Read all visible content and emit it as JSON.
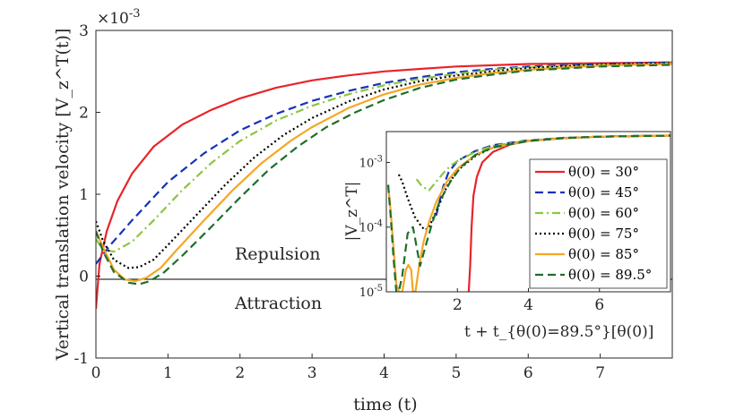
{
  "chart_data": [
    {
      "type": "line",
      "panel": "main",
      "title": "",
      "exponent_label": "×10",
      "exponent_power": "-3",
      "xlabel": "time (t)",
      "ylabel": "Vertical translation velocity [V_z^T(t)]",
      "xlim": [
        0,
        8
      ],
      "ylim": [
        -1,
        3
      ],
      "xticks": [
        0,
        1,
        2,
        3,
        4,
        5,
        6,
        7
      ],
      "yticks": [
        -1,
        0,
        1,
        2,
        3
      ],
      "annotations": [
        "Repulsion",
        "Attraction"
      ],
      "series": [
        {
          "name": "θ(0) = 30°",
          "color": "#e8242a",
          "dash": "solid",
          "x": [
            0,
            0.05,
            0.15,
            0.3,
            0.5,
            0.8,
            1.2,
            1.6,
            2.0,
            2.5,
            3.0,
            3.5,
            4.0,
            4.5,
            5.0,
            6.0,
            7.0,
            8.0
          ],
          "y": [
            -0.4,
            0.15,
            0.55,
            0.92,
            1.25,
            1.58,
            1.85,
            2.03,
            2.17,
            2.3,
            2.39,
            2.45,
            2.5,
            2.53,
            2.56,
            2.59,
            2.6,
            2.61
          ]
        },
        {
          "name": "θ(0) = 45°",
          "color": "#1632b8",
          "dash": "dashed",
          "x": [
            0,
            0.2,
            0.5,
            1.0,
            1.5,
            2.0,
            2.5,
            3.0,
            3.5,
            4.0,
            4.5,
            5.0,
            5.5,
            6.0,
            7.0,
            8.0
          ],
          "y": [
            0.15,
            0.38,
            0.68,
            1.15,
            1.5,
            1.78,
            1.98,
            2.14,
            2.26,
            2.36,
            2.43,
            2.49,
            2.53,
            2.56,
            2.59,
            2.61
          ]
        },
        {
          "name": "θ(0) = 60°",
          "color": "#8cc63f",
          "dash": "dashdot",
          "x": [
            0,
            0.1,
            0.25,
            0.5,
            0.8,
            1.2,
            1.6,
            2.0,
            2.5,
            3.0,
            3.5,
            4.0,
            4.5,
            5.0,
            5.5,
            6.0,
            7.0,
            8.0
          ],
          "y": [
            0.45,
            0.32,
            0.3,
            0.42,
            0.68,
            1.05,
            1.38,
            1.65,
            1.9,
            2.08,
            2.22,
            2.33,
            2.41,
            2.47,
            2.52,
            2.55,
            2.58,
            2.6
          ]
        },
        {
          "name": "θ(0) = 75°",
          "color": "#000000",
          "dash": "dotted",
          "x": [
            0,
            0.1,
            0.25,
            0.45,
            0.6,
            0.8,
            1.0,
            1.4,
            1.8,
            2.2,
            2.6,
            3.0,
            3.5,
            4.0,
            4.5,
            5.0,
            5.5,
            6.0,
            7.0,
            8.0
          ],
          "y": [
            0.67,
            0.43,
            0.2,
            0.1,
            0.11,
            0.2,
            0.38,
            0.75,
            1.12,
            1.45,
            1.72,
            1.93,
            2.13,
            2.28,
            2.38,
            2.45,
            2.5,
            2.54,
            2.58,
            2.6
          ]
        },
        {
          "name": "θ(0) = 85°",
          "color": "#f5a623",
          "dash": "solid",
          "x": [
            0,
            0.1,
            0.25,
            0.4,
            0.55,
            0.7,
            0.9,
            1.1,
            1.5,
            1.9,
            2.3,
            2.7,
            3.0,
            3.5,
            4.0,
            4.5,
            5.0,
            5.5,
            6.0,
            7.0,
            8.0
          ],
          "y": [
            0.55,
            0.35,
            0.08,
            -0.04,
            -0.06,
            -0.02,
            0.1,
            0.3,
            0.68,
            1.05,
            1.38,
            1.65,
            1.82,
            2.05,
            2.22,
            2.34,
            2.42,
            2.48,
            2.52,
            2.57,
            2.59
          ]
        },
        {
          "name": "θ(0) = 89.5°",
          "color": "#1f6e2b",
          "dash": "dashed",
          "x": [
            0,
            0.1,
            0.25,
            0.45,
            0.6,
            0.75,
            0.95,
            1.2,
            1.6,
            2.0,
            2.4,
            2.8,
            3.2,
            3.6,
            4.0,
            4.5,
            5.0,
            5.5,
            6.0,
            7.0,
            8.0
          ],
          "y": [
            0.55,
            0.3,
            0.05,
            -0.08,
            -0.1,
            -0.06,
            0.05,
            0.25,
            0.6,
            0.96,
            1.3,
            1.58,
            1.82,
            2.0,
            2.15,
            2.3,
            2.4,
            2.46,
            2.51,
            2.56,
            2.58
          ]
        }
      ]
    },
    {
      "type": "line",
      "panel": "inset",
      "yscale": "log",
      "xlabel": "t + t_{θ(0)=89.5°}[θ(0)]",
      "ylabel": "|V_z^T|",
      "xlim": [
        0,
        8
      ],
      "ylim": [
        1e-05,
        0.003
      ],
      "xticks": [
        2,
        4,
        6
      ],
      "ytick_labels": [
        "10^-3",
        "10^-4",
        "10^-5"
      ],
      "legend_location": "inside-right",
      "series": [
        {
          "name": "θ(0) = 30°",
          "color": "#e8242a",
          "dash": "solid",
          "x": [
            2.32,
            2.36,
            2.4,
            2.45,
            2.55,
            2.7,
            3.0,
            3.5,
            4.0,
            5.0,
            6.0,
            7.0,
            8.0
          ],
          "y": [
            1e-05,
            2.5e-05,
            0.0001,
            0.0003,
            0.0006,
            0.001,
            0.00145,
            0.0019,
            0.00215,
            0.00238,
            0.0025,
            0.00256,
            0.0026
          ]
        },
        {
          "name": "θ(0) = 45°",
          "color": "#1632b8",
          "dash": "dashed",
          "x": [
            1.4,
            1.5,
            1.6,
            1.75,
            2.0,
            2.5,
            3.0,
            4.0,
            5.0,
            6.0,
            7.0,
            8.0
          ],
          "y": [
            0.00015,
            0.00025,
            0.00042,
            0.0007,
            0.00105,
            0.0015,
            0.00185,
            0.0022,
            0.0024,
            0.0025,
            0.00256,
            0.0026
          ]
        },
        {
          "name": "θ(0) = 60°",
          "color": "#8cc63f",
          "dash": "dashdot",
          "x": [
            0.85,
            1.0,
            1.2,
            1.4,
            1.6,
            1.8,
            2.0,
            2.5,
            3.0,
            4.0,
            5.0,
            6.0,
            7.0,
            8.0
          ],
          "y": [
            0.00055,
            0.00043,
            0.00037,
            0.0005,
            0.00068,
            0.00088,
            0.00105,
            0.00145,
            0.0018,
            0.00218,
            0.0024,
            0.0025,
            0.00256,
            0.0026
          ]
        },
        {
          "name": "θ(0) = 75°",
          "color": "#000000",
          "dash": "dotted",
          "x": [
            0.35,
            0.45,
            0.6,
            0.8,
            1.0,
            1.1,
            1.2,
            1.35,
            1.5,
            1.7,
            2.0,
            2.5,
            3.0,
            4.0,
            5.0,
            6.0,
            7.0,
            8.0
          ],
          "y": [
            0.00065,
            0.0005,
            0.00028,
            0.000145,
            0.0001,
            9e-05,
            0.0001,
            0.00015,
            0.00023,
            0.00042,
            0.00075,
            0.00125,
            0.0017,
            0.00215,
            0.00238,
            0.0025,
            0.00256,
            0.0026
          ]
        },
        {
          "name": "θ(0) = 85°",
          "color": "#f5a623",
          "dash": "solid",
          "x": [
            0.05,
            0.12,
            0.2,
            0.28,
            0.36,
            0.45,
            0.55,
            0.62,
            0.7,
            0.75,
            0.82,
            0.92,
            1.05,
            1.2,
            1.4,
            1.7,
            2.0,
            2.5,
            3.0,
            4.0,
            5.0,
            6.0,
            7.0,
            8.0
          ],
          "y": [
            0.00045,
            0.00018,
            5e-05,
            1.3e-05,
            1e-05,
            1e-05,
            2.2e-05,
            2.6e-05,
            2.2e-05,
            1e-05,
            1e-05,
            2.5e-05,
            6e-05,
            0.00012,
            0.00024,
            0.0005,
            0.0008,
            0.0013,
            0.0017,
            0.00215,
            0.00238,
            0.0025,
            0.00256,
            0.0026
          ]
        },
        {
          "name": "θ(0) = 89.5°",
          "color": "#1f6e2b",
          "dash": "dashed",
          "x": [
            0.05,
            0.12,
            0.2,
            0.28,
            0.35,
            0.45,
            0.6,
            0.75,
            0.85,
            0.95,
            1.1,
            1.3,
            1.5,
            1.8,
            2.1,
            2.5,
            3.0,
            4.0,
            5.0,
            6.0,
            7.0,
            8.0
          ],
          "y": [
            0.00045,
            0.00015,
            3.5e-05,
            1e-05,
            1e-05,
            1.8e-05,
            8e-05,
            0.0001,
            5e-05,
            2.5e-05,
            5e-05,
            0.00012,
            0.00025,
            0.0005,
            0.00085,
            0.0013,
            0.0017,
            0.00215,
            0.00238,
            0.0025,
            0.00256,
            0.0026
          ]
        }
      ]
    }
  ]
}
